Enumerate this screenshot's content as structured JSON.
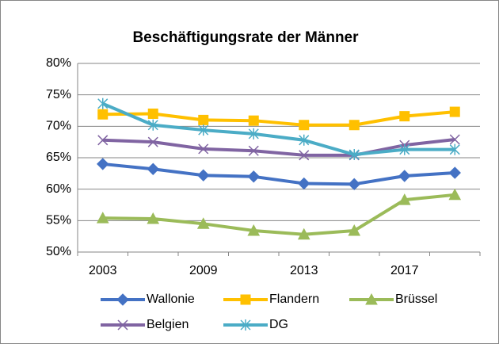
{
  "chart_data": {
    "type": "line",
    "title": "Beschäftigungsrate der Männer",
    "categories": [
      "2003",
      null,
      "2009",
      null,
      "2013",
      null,
      "2017",
      null
    ],
    "series": [
      {
        "name": "Wallonie",
        "color": "#4472c4",
        "marker": "diamond",
        "values": [
          64.0,
          63.2,
          62.2,
          62.0,
          60.9,
          60.8,
          62.1,
          62.6
        ]
      },
      {
        "name": "Flandern",
        "color": "#ffc000",
        "marker": "square",
        "values": [
          71.9,
          72.0,
          71.0,
          70.9,
          70.2,
          70.2,
          71.6,
          72.3
        ]
      },
      {
        "name": "Brüssel",
        "color": "#9bbb59",
        "marker": "triangle",
        "values": [
          55.4,
          55.3,
          54.5,
          53.4,
          52.8,
          53.4,
          58.3,
          59.1
        ]
      },
      {
        "name": "Belgien",
        "color": "#8064a2",
        "marker": "x",
        "values": [
          67.8,
          67.5,
          66.4,
          66.1,
          65.4,
          65.4,
          67.0,
          67.9
        ]
      },
      {
        "name": "DG",
        "color": "#4bacc6",
        "marker": "star",
        "values": [
          73.6,
          70.2,
          69.4,
          68.8,
          67.8,
          65.5,
          66.3,
          66.3
        ]
      }
    ],
    "ylim": [
      50,
      80
    ],
    "yticks": [
      {
        "value": 50,
        "label": "50%"
      },
      {
        "value": 55,
        "label": "55%"
      },
      {
        "value": 60,
        "label": "60%"
      },
      {
        "value": 65,
        "label": "65%"
      },
      {
        "value": 70,
        "label": "70%"
      },
      {
        "value": 75,
        "label": "75%"
      },
      {
        "value": 80,
        "label": "80%"
      }
    ],
    "grid": true,
    "legend": "bottom"
  }
}
